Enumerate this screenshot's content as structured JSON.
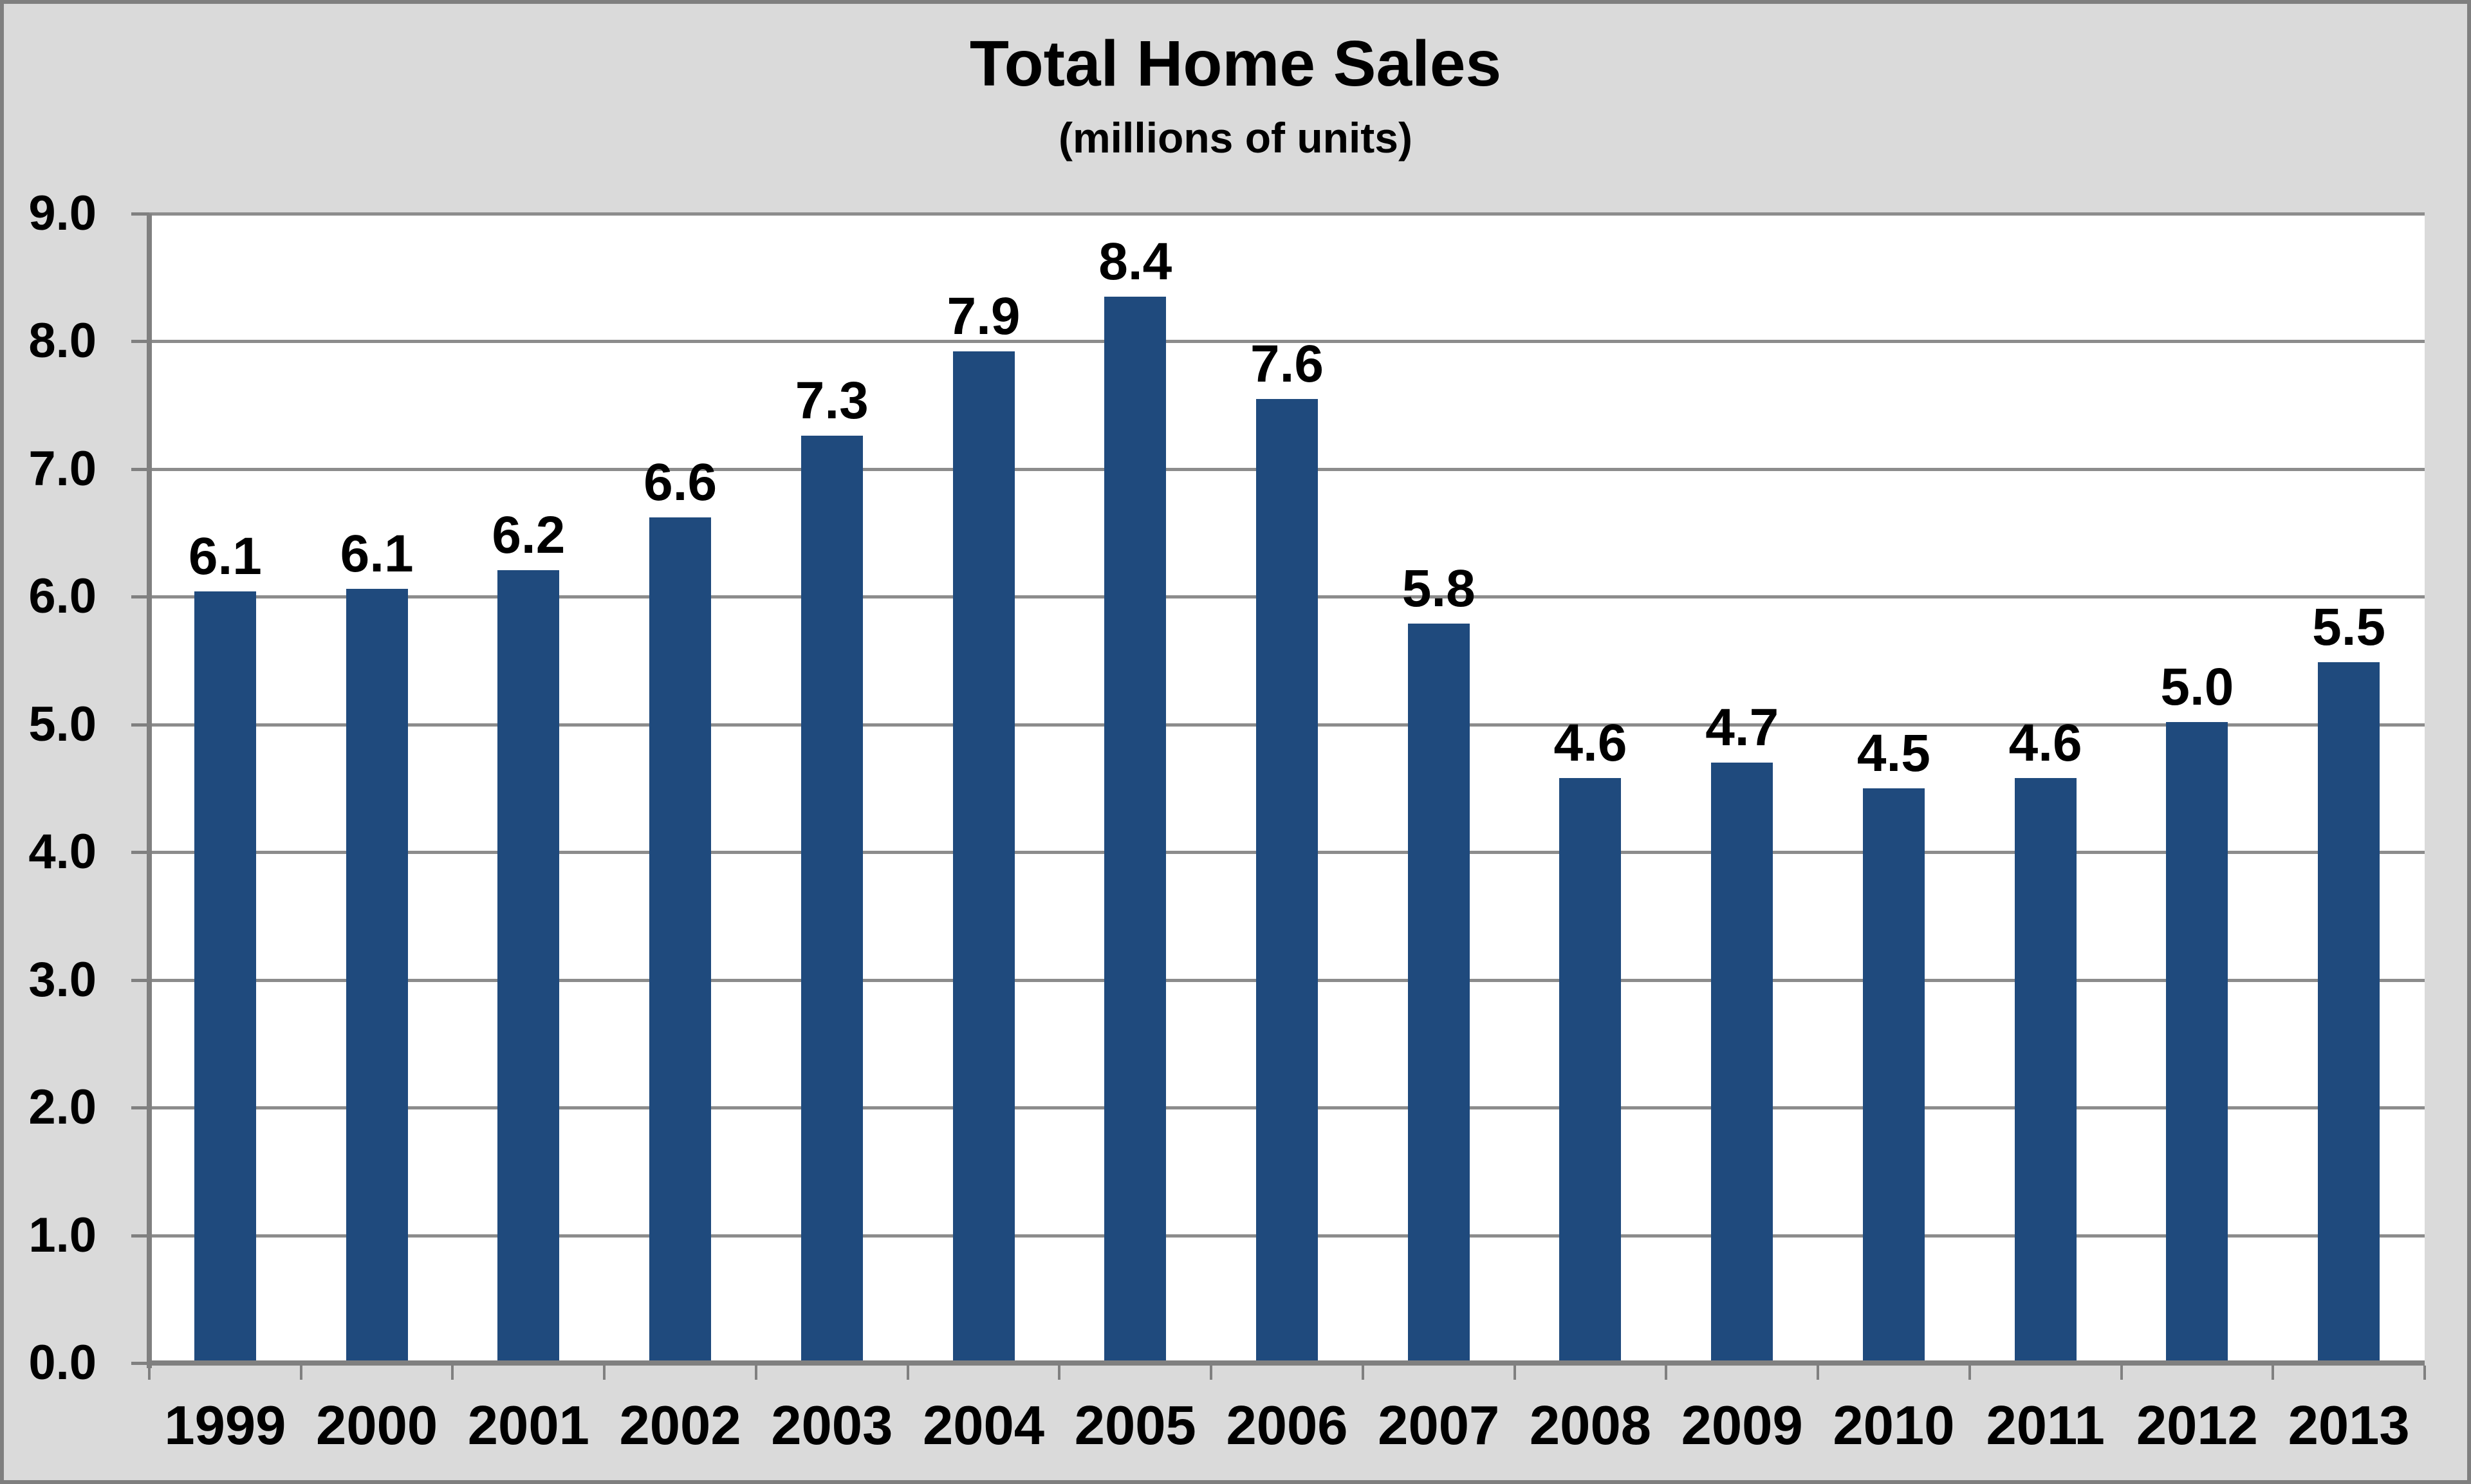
{
  "chart_data": {
    "type": "bar",
    "title": "Total Home Sales",
    "subtitle": "(millions of units)",
    "categories": [
      "1999",
      "2000",
      "2001",
      "2002",
      "2003",
      "2004",
      "2005",
      "2006",
      "2007",
      "2008",
      "2009",
      "2010",
      "2011",
      "2012",
      "2013"
    ],
    "values": [
      6.1,
      6.1,
      6.2,
      6.6,
      7.3,
      7.9,
      8.4,
      7.6,
      5.8,
      4.6,
      4.7,
      4.5,
      4.6,
      5.0,
      5.5
    ],
    "data_labels": [
      "6.1",
      "6.1",
      "6.2",
      "6.6",
      "7.3",
      "7.9",
      "8.4",
      "7.6",
      "5.8",
      "4.6",
      "4.7",
      "4.5",
      "4.6",
      "5.0",
      "5.5"
    ],
    "bar_render_heights": [
      6.04,
      6.06,
      6.21,
      6.62,
      7.26,
      7.92,
      8.35,
      7.55,
      5.79,
      4.58,
      4.7,
      4.5,
      4.58,
      5.02,
      5.49
    ],
    "xlabel": "",
    "ylabel": "",
    "ylim": [
      0.0,
      9.0
    ],
    "ytick_step": 1.0,
    "ytick_labels": [
      "0.0",
      "1.0",
      "2.0",
      "3.0",
      "4.0",
      "5.0",
      "6.0",
      "7.0",
      "8.0",
      "9.0"
    ],
    "grid": true,
    "legend": false,
    "colors": {
      "bar": "#1F4A7D",
      "gridline": "#8C8C8C",
      "axis": "#808080",
      "tick": "#808080",
      "plot_bg": "#FFFFFF",
      "chart_bg": "#DADADA",
      "frame_border": "#7F7F7F",
      "text": "#000000"
    }
  }
}
